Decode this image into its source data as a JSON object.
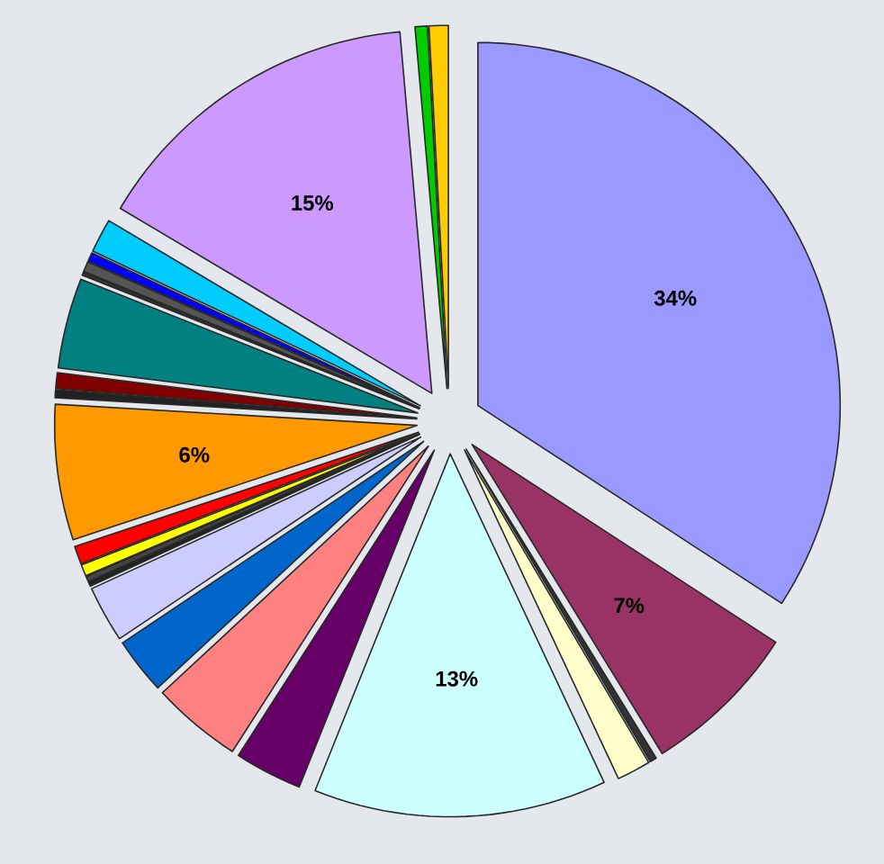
{
  "chart_data": {
    "type": "pie",
    "categories": [
      null,
      null,
      null,
      null,
      null,
      null,
      null,
      null,
      null,
      null,
      null,
      null,
      null,
      null,
      null,
      null,
      null,
      null,
      null,
      null,
      null,
      null,
      null,
      null
    ],
    "values": [
      34,
      7,
      0.3,
      1.5,
      13,
      3,
      4,
      2.5,
      2.5,
      0.2,
      0.25,
      0.5,
      0.8,
      6,
      0.35,
      0.7,
      4,
      0.15,
      0.45,
      0.4,
      1.5,
      15,
      0.55,
      0.85
    ],
    "colors": [
      "#9999ff",
      "#993366",
      "#333333",
      "#ffffcc",
      "#ccffff",
      "#660066",
      "#ff8080",
      "#0066cc",
      "#ccccff",
      "#222222",
      "#444444",
      "#ffff00",
      "#ff0000",
      "#ff9900",
      "#222222",
      "#800000",
      "#008080",
      "#333333",
      "#555555",
      "#0000ff",
      "#00ccff",
      "#cc99ff",
      "#00cc00",
      "#ffcc00"
    ],
    "value_labels": [
      "34%",
      "7%",
      null,
      null,
      "13%",
      null,
      null,
      null,
      null,
      null,
      null,
      null,
      null,
      "6%",
      null,
      null,
      null,
      null,
      null,
      null,
      null,
      "15%",
      null,
      null
    ]
  }
}
